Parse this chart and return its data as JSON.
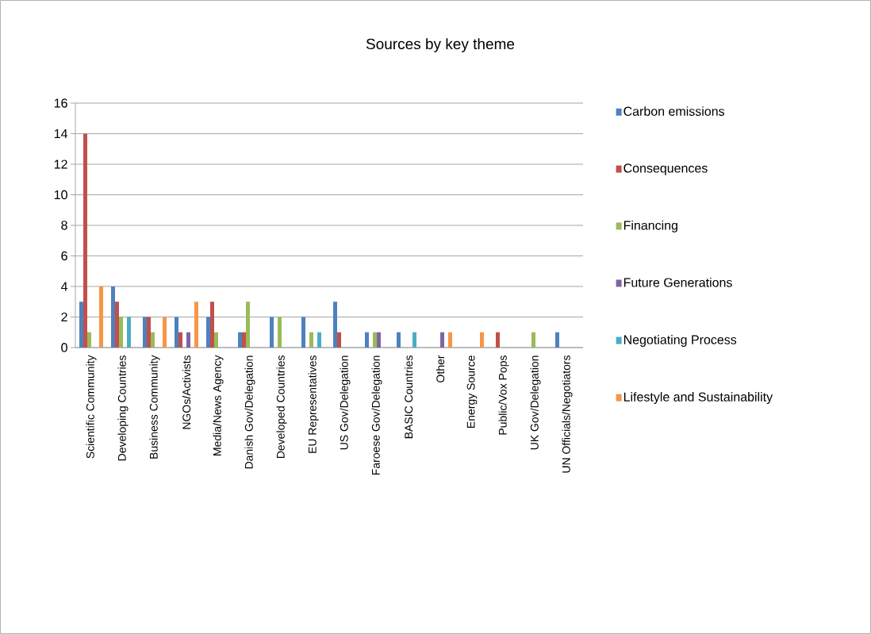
{
  "chart_data": {
    "type": "bar",
    "title": "Sources by key theme",
    "categories": [
      "Scientific Community",
      "Developing Countries",
      "Business Community",
      "NGOs/Activists",
      "Media/News Agency",
      "Danish Gov/Delegation",
      "Developed Countries",
      "EU Representatives",
      "US Gov/Delegation",
      "Faroese Gov/Delegation",
      "BASIC Countries",
      "Other",
      "Energy Source",
      "Public/Vox Pops",
      "UK Gov/Delegation",
      "UN Officials/Negotiators"
    ],
    "series": [
      {
        "name": "Carbon emissions",
        "color": "#4f81bd",
        "values": [
          3,
          4,
          2,
          2,
          2,
          1,
          2,
          2,
          3,
          1,
          1,
          0,
          0,
          0,
          0,
          1
        ]
      },
      {
        "name": "Consequences",
        "color": "#c0504d",
        "values": [
          14,
          3,
          2,
          1,
          3,
          1,
          0,
          0,
          1,
          0,
          0,
          0,
          0,
          1,
          0,
          0
        ]
      },
      {
        "name": "Financing",
        "color": "#9bbb59",
        "values": [
          1,
          2,
          1,
          0,
          1,
          3,
          2,
          1,
          0,
          1,
          0,
          0,
          0,
          0,
          1,
          0
        ]
      },
      {
        "name": "Future Generations",
        "color": "#8064a2",
        "values": [
          0,
          0,
          0,
          1,
          0,
          0,
          0,
          0,
          0,
          1,
          0,
          1,
          0,
          0,
          0,
          0
        ]
      },
      {
        "name": "Negotiating Process",
        "color": "#4bacc6",
        "values": [
          0,
          2,
          0,
          0,
          0,
          0,
          0,
          1,
          0,
          0,
          1,
          0,
          0,
          0,
          0,
          0
        ]
      },
      {
        "name": "Lifestyle and Sustainability",
        "color": "#f79646",
        "values": [
          4,
          0,
          2,
          3,
          0,
          0,
          0,
          0,
          0,
          0,
          0,
          1,
          1,
          0,
          0,
          0
        ]
      }
    ],
    "ylim": [
      0,
      16
    ],
    "yticks": [
      0,
      2,
      4,
      6,
      8,
      10,
      12,
      14,
      16
    ],
    "grid": "y",
    "legend": "right"
  }
}
